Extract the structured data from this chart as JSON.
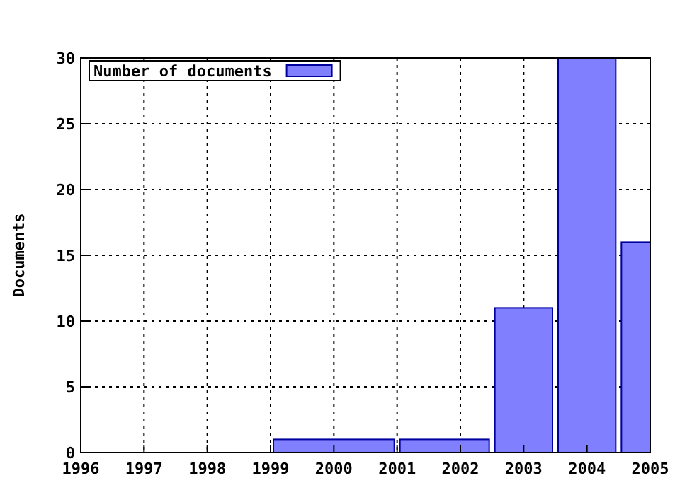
{
  "chart_data": {
    "type": "histogram",
    "ylabel": "Documents",
    "bins": [
      1999,
      2001,
      2002.5,
      2003.5,
      2004.5,
      2005
    ],
    "series": [
      {
        "name": "Number of documents",
        "color": "#8080ff",
        "values": [
          1,
          1,
          11,
          30,
          16
        ]
      }
    ],
    "xlim": [
      1996,
      2005
    ],
    "xticks": [
      1996,
      1997,
      1998,
      1999,
      2000,
      2001,
      2002,
      2003,
      2004,
      2005
    ],
    "ylim": [
      0,
      30
    ],
    "yticks": [
      0,
      5,
      10,
      15,
      20,
      25,
      30
    ],
    "grid": true,
    "legend": "top left"
  }
}
